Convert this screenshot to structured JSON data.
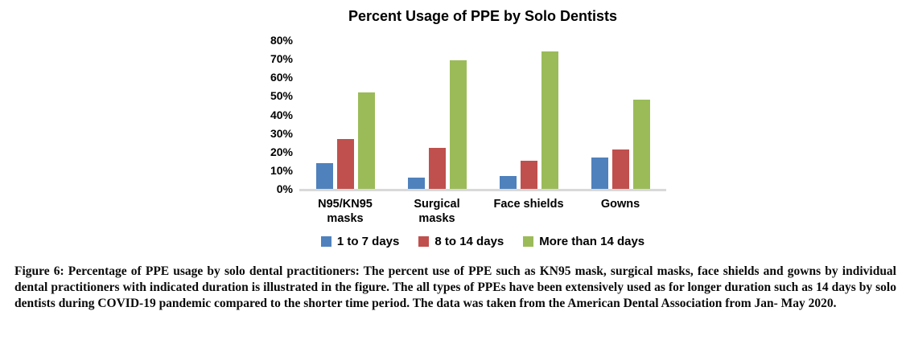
{
  "chart_data": {
    "type": "bar",
    "title": "Percent Usage of PPE by Solo Dentists",
    "categories": [
      "N95/KN95 masks",
      "Surgical masks",
      "Face shields",
      "Gowns"
    ],
    "series": [
      {
        "name": "1 to 7 days",
        "color": "#4F81BD",
        "values": [
          14,
          6,
          7,
          17
        ]
      },
      {
        "name": "8 to 14 days",
        "color": "#C0504D",
        "values": [
          27,
          22,
          15,
          21
        ]
      },
      {
        "name": "More than 14 days",
        "color": "#9BBB59",
        "values": [
          52,
          69,
          74,
          48
        ]
      }
    ],
    "ylabel": "",
    "xlabel": "",
    "ylim": [
      0,
      80
    ],
    "y_tick_step": 10,
    "y_tick_labels": [
      "0%",
      "10%",
      "20%",
      "30%",
      "40%",
      "50%",
      "60%",
      "70%",
      "80%"
    ],
    "grid": false,
    "legend_position": "bottom",
    "axis_line_color": "#D9D9D9"
  },
  "caption": {
    "text": "Figure 6: Percentage of PPE usage by solo dental practitioners: The percent use of PPE such as KN95 mask, surgical masks, face shields and gowns by individual dental practitioners with indicated duration is illustrated in the figure. The all types of PPEs have been extensively used as for longer duration such as 14 days by solo dentists during COVID-19 pandemic compared to the shorter time period. The data was taken from the American Dental Association from Jan- May 2020."
  }
}
